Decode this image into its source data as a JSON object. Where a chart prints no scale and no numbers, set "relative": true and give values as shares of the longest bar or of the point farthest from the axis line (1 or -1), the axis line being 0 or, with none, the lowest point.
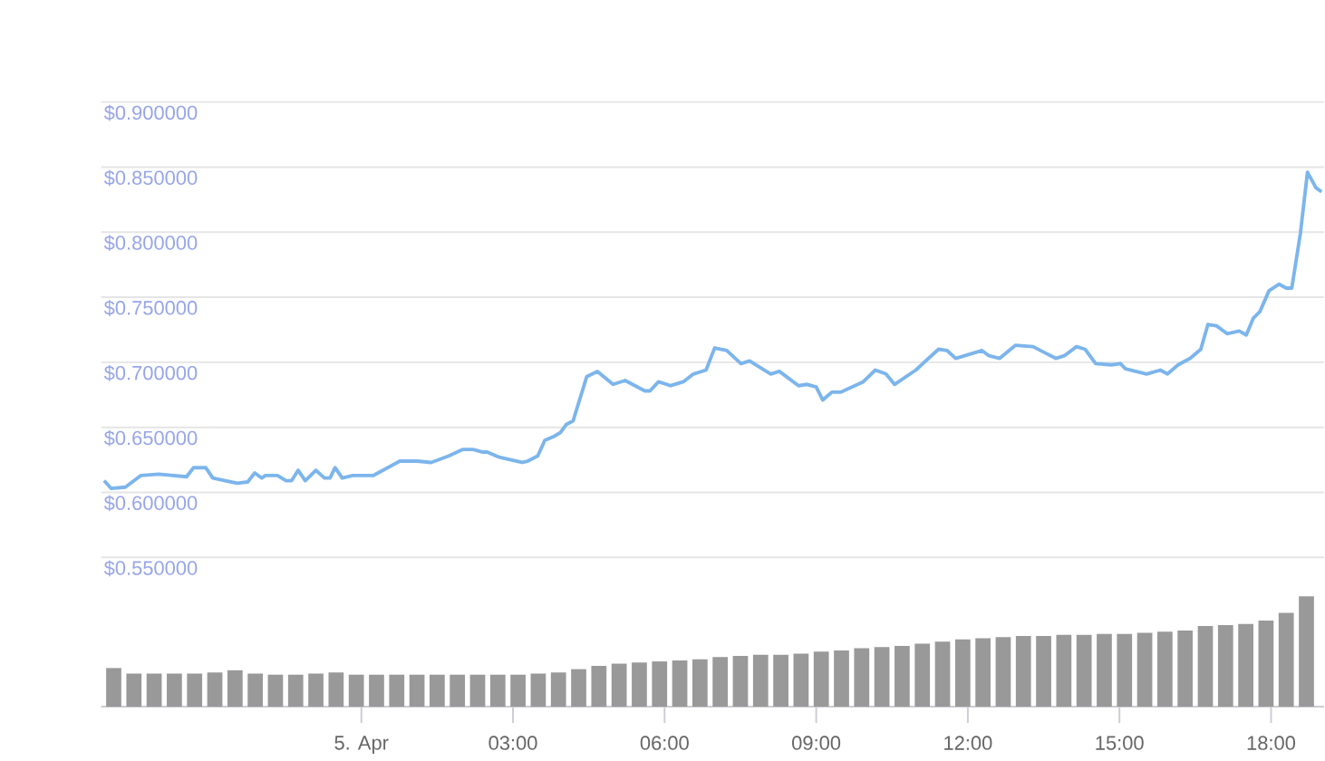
{
  "chart_data": [
    {
      "type": "line",
      "color": "#7cb5ec",
      "grid": "y",
      "tick_labels": "y",
      "xlim": [
        -5.15,
        19.05
      ],
      "ylim": [
        0.55,
        0.9
      ],
      "yticks": [
        {
          "value": 0.55,
          "label": "$0.550000"
        },
        {
          "value": 0.6,
          "label": "$0.600000"
        },
        {
          "value": 0.65,
          "label": "$0.650000"
        },
        {
          "value": 0.7,
          "label": "$0.700000"
        },
        {
          "value": 0.75,
          "label": "$0.750000"
        },
        {
          "value": 0.8,
          "label": "$0.800000"
        },
        {
          "value": 0.85,
          "label": "$0.850000"
        },
        {
          "value": 0.9,
          "label": "$0.900000"
        }
      ],
      "x": [
        -5.09,
        -4.95,
        -4.67,
        -4.36,
        -4.01,
        -3.46,
        -3.32,
        -3.08,
        -2.94,
        -2.46,
        -2.25,
        -2.11,
        -1.97,
        -1.9,
        -1.66,
        -1.49,
        -1.38,
        -1.25,
        -1.11,
        -0.9,
        -0.73,
        -0.62,
        -0.52,
        -0.38,
        -0.17,
        0.24,
        0.76,
        1.11,
        1.38,
        1.73,
        2.01,
        2.21,
        2.39,
        2.49,
        2.73,
        3.18,
        3.29,
        3.49,
        3.63,
        3.81,
        3.94,
        4.05,
        4.19,
        4.46,
        4.67,
        4.98,
        5.22,
        5.61,
        5.71,
        5.88,
        6.12,
        6.37,
        6.57,
        6.82,
        6.99,
        7.23,
        7.51,
        7.68,
        8.1,
        8.27,
        8.65,
        8.82,
        9.0,
        9.13,
        9.31,
        9.48,
        9.93,
        10.17,
        10.38,
        10.55,
        10.97,
        11.42,
        11.59,
        11.76,
        12.28,
        12.42,
        12.63,
        12.94,
        13.29,
        13.49,
        13.74,
        13.91,
        14.15,
        14.32,
        14.53,
        14.84,
        15.02,
        15.12,
        15.54,
        15.81,
        15.95,
        16.16,
        16.4,
        16.61,
        16.75,
        16.92,
        17.13,
        17.37,
        17.51,
        17.65,
        17.78,
        17.96,
        18.16,
        18.3,
        18.41,
        18.58,
        18.72,
        18.89,
        19.0
      ],
      "values": [
        0.609,
        0.603,
        0.604,
        0.613,
        0.614,
        0.612,
        0.619,
        0.619,
        0.611,
        0.607,
        0.608,
        0.615,
        0.611,
        0.613,
        0.613,
        0.609,
        0.609,
        0.617,
        0.609,
        0.617,
        0.611,
        0.611,
        0.619,
        0.611,
        0.613,
        0.613,
        0.624,
        0.624,
        0.623,
        0.628,
        0.633,
        0.633,
        0.631,
        0.631,
        0.627,
        0.623,
        0.624,
        0.628,
        0.64,
        0.643,
        0.646,
        0.652,
        0.655,
        0.689,
        0.693,
        0.683,
        0.686,
        0.678,
        0.678,
        0.685,
        0.682,
        0.685,
        0.691,
        0.694,
        0.711,
        0.709,
        0.699,
        0.701,
        0.691,
        0.693,
        0.682,
        0.683,
        0.681,
        0.671,
        0.677,
        0.677,
        0.685,
        0.694,
        0.691,
        0.683,
        0.694,
        0.71,
        0.709,
        0.703,
        0.709,
        0.705,
        0.703,
        0.713,
        0.712,
        0.708,
        0.703,
        0.705,
        0.712,
        0.71,
        0.699,
        0.698,
        0.699,
        0.695,
        0.691,
        0.694,
        0.691,
        0.698,
        0.703,
        0.71,
        0.729,
        0.728,
        0.722,
        0.724,
        0.721,
        0.734,
        0.739,
        0.755,
        0.76,
        0.757,
        0.757,
        0.799,
        0.846,
        0.834,
        0.831
      ]
    },
    {
      "type": "bar",
      "relative": true,
      "color": "#999999",
      "tick_labels": "x",
      "xlim": [
        -5.15,
        19.05
      ],
      "xticks": [
        {
          "value": 0,
          "label": "5. Apr"
        },
        {
          "value": 3,
          "label": "03:00"
        },
        {
          "value": 6,
          "label": "06:00"
        },
        {
          "value": 9,
          "label": "09:00"
        },
        {
          "value": 12,
          "label": "12:00"
        },
        {
          "value": 15,
          "label": "15:00"
        },
        {
          "value": 18,
          "label": "18:00"
        }
      ],
      "x": [
        -4.9,
        -4.5,
        -4.1,
        -3.7,
        -3.3,
        -2.9,
        -2.5,
        -2.1,
        -1.7,
        -1.3,
        -0.9,
        -0.5,
        -0.1,
        0.3,
        0.7,
        1.1,
        1.5,
        1.9,
        2.3,
        2.7,
        3.1,
        3.5,
        3.9,
        4.3,
        4.7,
        5.1,
        5.5,
        5.9,
        6.3,
        6.7,
        7.1,
        7.5,
        7.9,
        8.3,
        8.7,
        9.1,
        9.5,
        9.9,
        10.3,
        10.7,
        11.1,
        11.5,
        11.9,
        12.3,
        12.7,
        13.1,
        13.5,
        13.9,
        14.3,
        14.7,
        15.1,
        15.5,
        15.9,
        16.3,
        16.7,
        17.1,
        17.5,
        17.9,
        18.3,
        18.7
      ],
      "values": [
        0.35,
        0.3,
        0.3,
        0.3,
        0.3,
        0.31,
        0.33,
        0.3,
        0.29,
        0.29,
        0.3,
        0.31,
        0.29,
        0.29,
        0.29,
        0.29,
        0.29,
        0.29,
        0.29,
        0.29,
        0.29,
        0.3,
        0.31,
        0.34,
        0.37,
        0.39,
        0.4,
        0.41,
        0.42,
        0.43,
        0.45,
        0.46,
        0.47,
        0.47,
        0.48,
        0.5,
        0.51,
        0.53,
        0.54,
        0.55,
        0.57,
        0.59,
        0.61,
        0.62,
        0.63,
        0.64,
        0.64,
        0.65,
        0.65,
        0.66,
        0.66,
        0.67,
        0.68,
        0.69,
        0.73,
        0.74,
        0.75,
        0.78,
        0.85,
        1.0
      ]
    }
  ]
}
